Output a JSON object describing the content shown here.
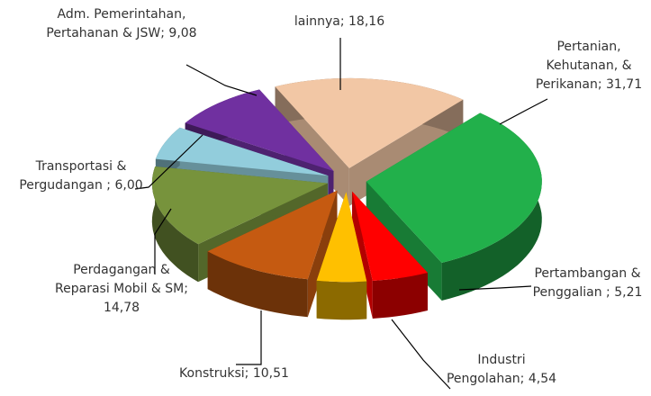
{
  "chart_data": {
    "type": "pie3d",
    "categories": [
      "lainnya;",
      "Pertanian, Kehutanan, & Perikanan;",
      "Pertambangan & Penggalian ;",
      "Industri Pengolahan;",
      "Konstruksi;",
      "Perdagangan & Reparasi Mobil & SM;",
      "Transportasi & Pergudangan ;",
      "Adm. Pemerintahan, Pertahanan & JSW;"
    ],
    "values": [
      18.16,
      31.71,
      5.21,
      4.54,
      10.51,
      14.78,
      6.0,
      9.08
    ],
    "value_labels": [
      "18,16",
      "31,71",
      "5,21",
      "4,54",
      "10,51",
      "14,78",
      "6,00",
      "9,08"
    ],
    "colors": [
      "#f2c7a5",
      "#22b04b",
      "#ff0000",
      "#ffc000",
      "#c55a11",
      "#77933c",
      "#92cddc",
      "#7030a0"
    ]
  }
}
